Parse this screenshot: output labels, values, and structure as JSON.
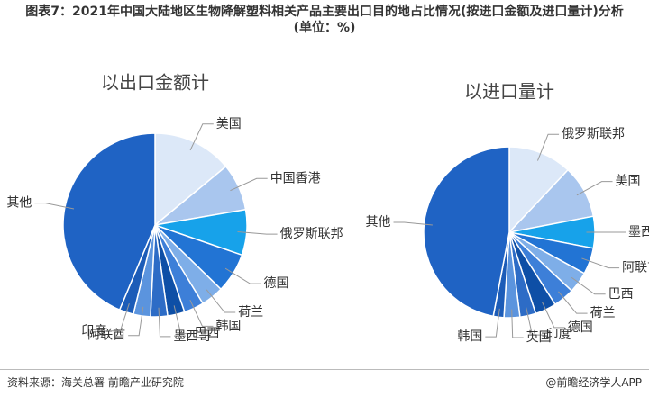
{
  "title": "图表7：2021年中国大陆地区生物降解塑料相关产品主要出口目的地占比情况(按进口金额及进口量计)分析(单位：%)",
  "source": "资料来源：海关总署 前瞻产业研究院",
  "credit": "@前瞻经济学人APP",
  "chart_data": [
    {
      "type": "pie",
      "title": "以出口金额计",
      "categories": [
        "美国",
        "中国香港",
        "俄罗斯联邦",
        "德国",
        "荷兰",
        "韩国",
        "巴西",
        "墨西哥",
        "阿联酋",
        "印度",
        "其他"
      ],
      "values": [
        14,
        8.3,
        8,
        7,
        4,
        3.5,
        3,
        3,
        3,
        2.5,
        43.7
      ],
      "colors": [
        "#dce8f8",
        "#a9c6ee",
        "#17a2ea",
        "#2274d4",
        "#7eaee8",
        "#3d7fd8",
        "#0e4fa6",
        "#2d6cc6",
        "#5b94de",
        "#1c5cb8",
        "#1f63c4"
      ]
    },
    {
      "type": "pie",
      "title": "以进口量计",
      "categories": [
        "俄罗斯联邦",
        "美国",
        "墨西哥",
        "阿联酋",
        "巴西",
        "荷兰",
        "德国",
        "印度",
        "英国",
        "韩国",
        "其他"
      ],
      "values": [
        12,
        10,
        6,
        5,
        4,
        4,
        4,
        3,
        3,
        2,
        47
      ],
      "colors": [
        "#dce8f8",
        "#a9c6ee",
        "#17a2ea",
        "#2274d4",
        "#7eaee8",
        "#3d7fd8",
        "#0e4fa6",
        "#2d6cc6",
        "#5b94de",
        "#1c5cb8",
        "#1f63c4"
      ]
    }
  ]
}
